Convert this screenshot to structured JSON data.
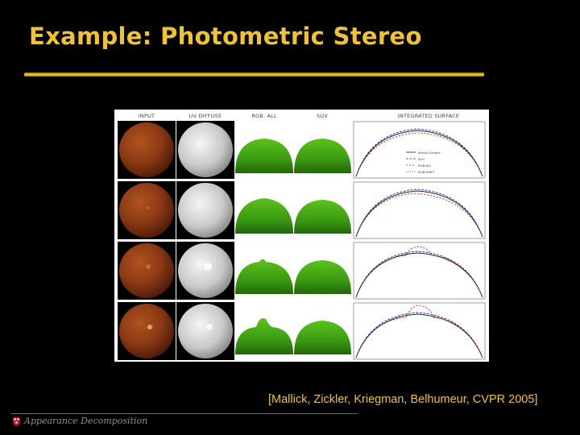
{
  "slide": {
    "title": "Example: Photometric Stereo",
    "citation": "[Mallick, Zickler, Kriegman, Belhumeur, CVPR 2005]",
    "footer": "Appearance Decomposition"
  },
  "figure": {
    "columns": [
      "INPUT",
      "UV DIFFUSE",
      "RGB: ALL",
      "SUV",
      "INTEGRATED SURFACE"
    ],
    "legend": [
      "Actual Surface",
      "SUV",
      "RGB:ALL",
      "RGB:SHIFT"
    ],
    "colors": {
      "input_sphere": "#8b3a14",
      "diffuse_sphere": "#d8d8d8",
      "surface": "#3a9a12",
      "curve_actual": "#222222",
      "curve_suv": "#1a2fb0",
      "curve_rgb_all": "#c01a1a"
    }
  }
}
